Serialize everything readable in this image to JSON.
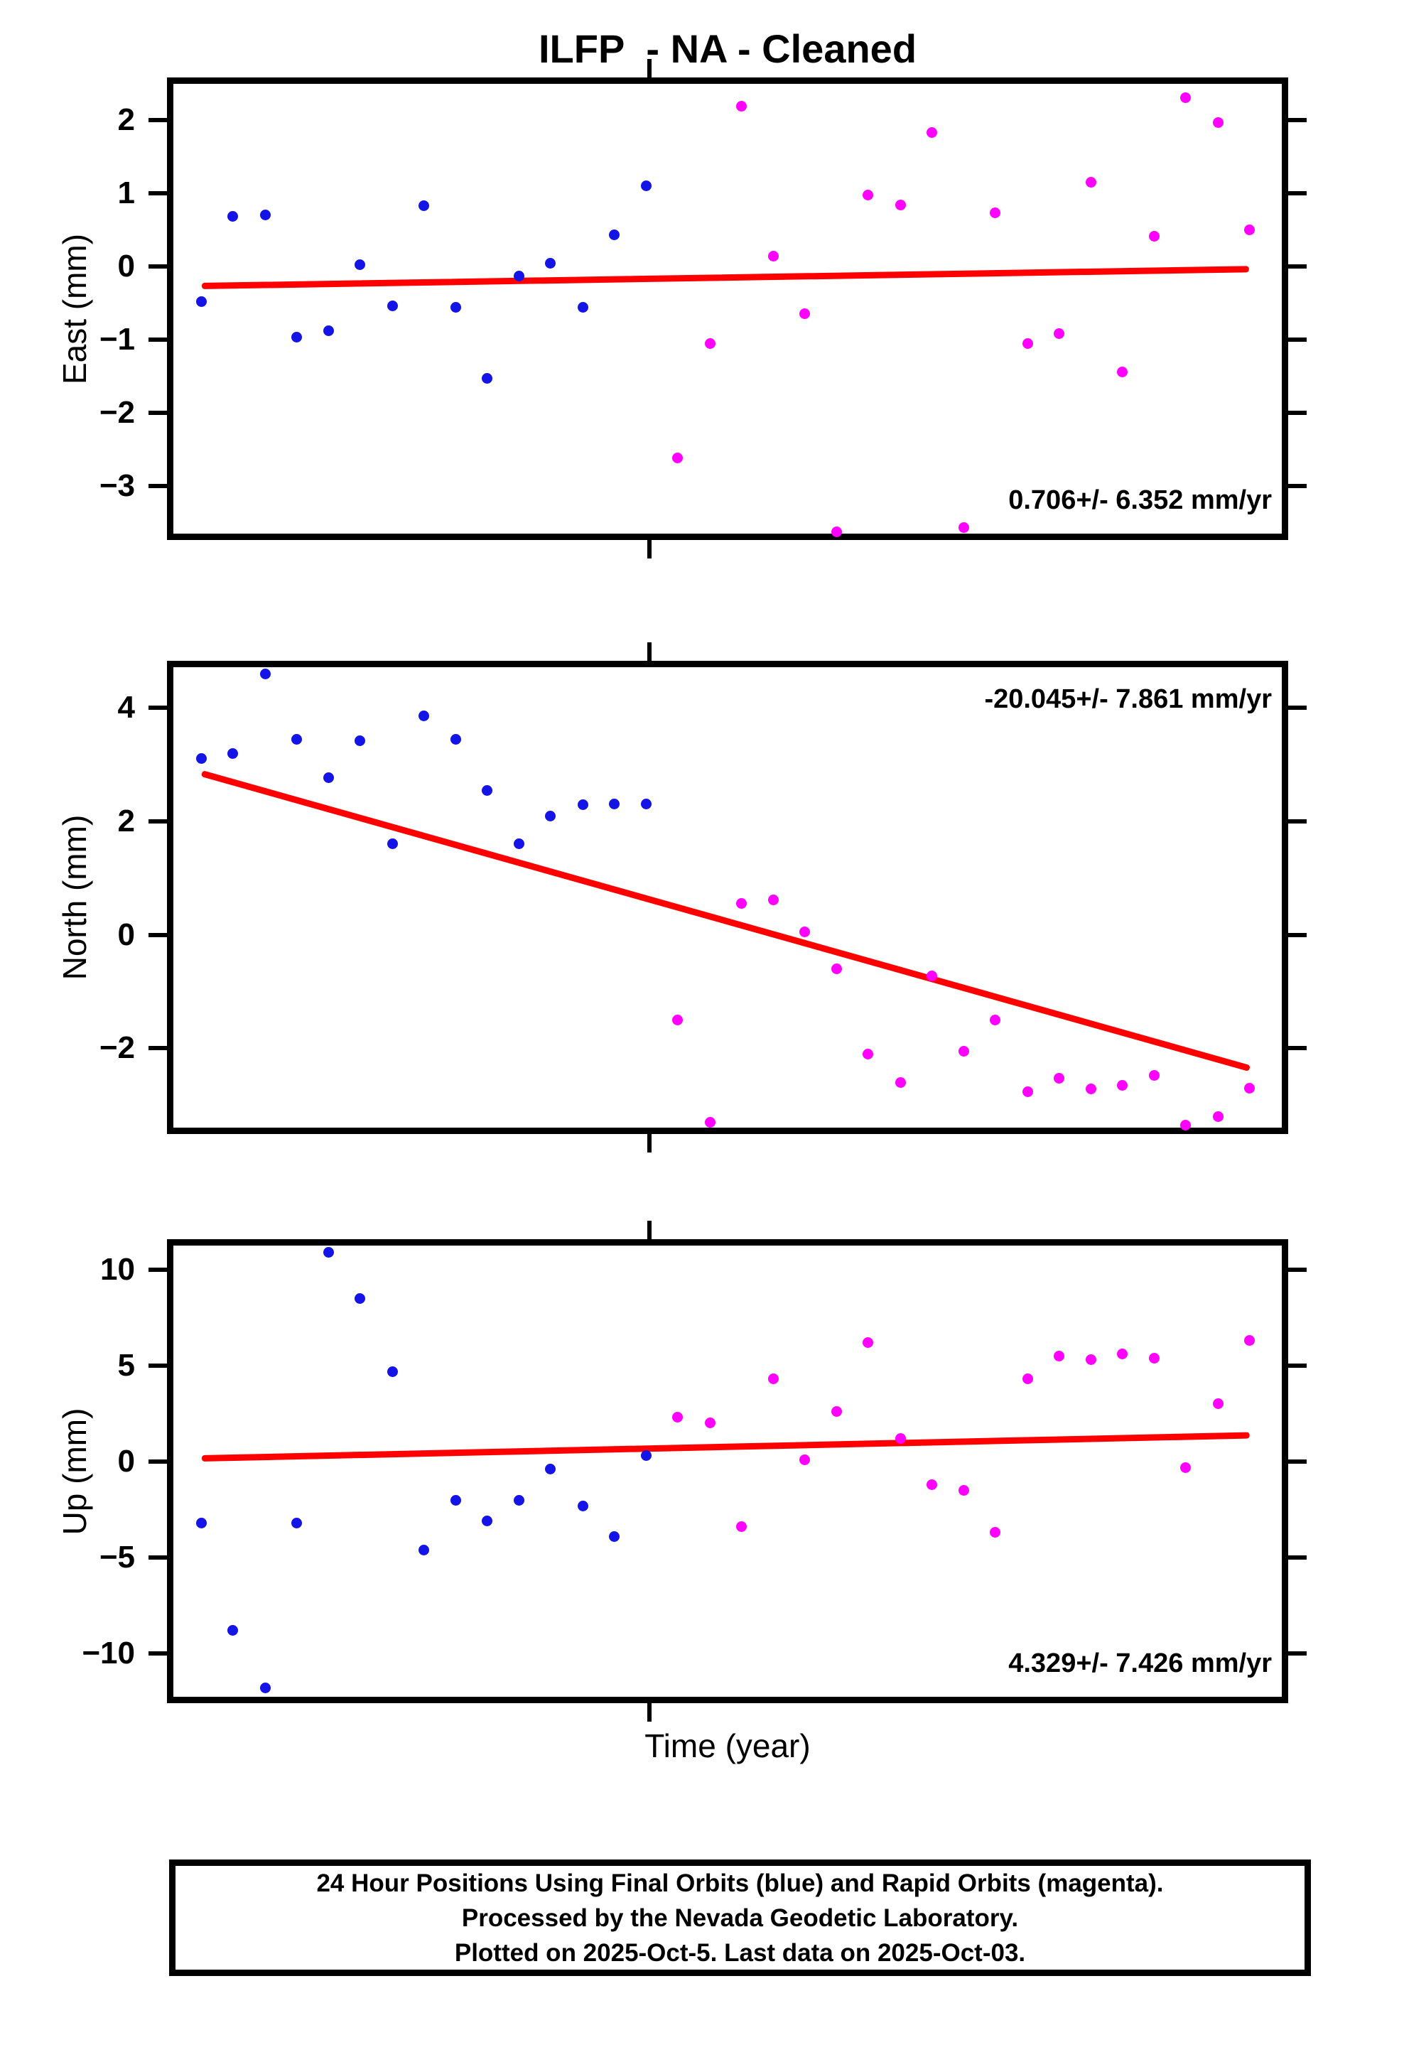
{
  "title": "ILFP  - NA - Cleaned",
  "xlabel": "Time (year)",
  "caption": {
    "line1": "24 Hour Positions Using Final Orbits (blue) and Rapid Orbits (magenta).",
    "line2": "Processed by the Nevada Geodetic Laboratory.",
    "line3": "Plotted on 2025-Oct-5. Last data on 2025-Oct-03."
  },
  "colors": {
    "final_orbits": "#1414E6",
    "rapid_orbits": "#FF00FF",
    "trend": "#FF0000",
    "frame": "#000000"
  },
  "legend_semantics": {
    "blue_series": "Final Orbits (blue)",
    "magenta_series": "Rapid Orbits (magenta)"
  },
  "chart_data": [
    {
      "type": "scatter",
      "id": "east",
      "ylabel": "East (mm)",
      "rate_text": "0.706+/- 6.352 mm/yr",
      "rate_text_corner": "bottom-right",
      "rate_mm_per_yr": 0.706,
      "rate_sigma": 6.352,
      "xlim": [
        2024.74,
        2025.81
      ],
      "xticks": [
        2025.2
      ],
      "ylim": [
        -3.69,
        2.53
      ],
      "yticks": [
        2,
        1,
        0,
        -1,
        -2,
        -3
      ],
      "grid": false,
      "series": [
        {
          "name": "Final Orbits",
          "color_key": "final_orbits",
          "x": [
            2024.77,
            2024.8,
            2024.831,
            2024.861,
            2024.892,
            2024.922,
            2024.953,
            2024.983,
            2025.014,
            2025.044,
            2025.075,
            2025.105,
            2025.136,
            2025.166,
            2025.197
          ],
          "y": [
            -0.48,
            0.68,
            0.7,
            -0.97,
            -0.88,
            0.02,
            -0.54,
            0.83,
            -0.56,
            -1.53,
            -0.13,
            0.04,
            -0.56,
            0.43,
            1.1
          ]
        },
        {
          "name": "Rapid Orbits",
          "color_key": "rapid_orbits",
          "x": [
            2025.227,
            2025.258,
            2025.288,
            2025.319,
            2025.349,
            2025.38,
            2025.41,
            2025.441,
            2025.471,
            2025.502,
            2025.532,
            2025.563,
            2025.593,
            2025.624,
            2025.654,
            2025.685,
            2025.715,
            2025.746,
            2025.776
          ],
          "y": [
            -2.62,
            -1.06,
            2.19,
            0.14,
            -0.65,
            -3.63,
            0.97,
            0.84,
            1.83,
            -3.57,
            0.73,
            -1.06,
            -0.92,
            1.15,
            -1.44,
            0.41,
            2.3,
            1.96,
            0.5
          ]
        }
      ],
      "trend": {
        "x": [
          2024.77,
          2025.776
        ],
        "y": [
          -0.27,
          -0.04
        ]
      }
    },
    {
      "type": "scatter",
      "id": "north",
      "ylabel": "North (mm)",
      "rate_text": "-20.045+/- 7.861 mm/yr",
      "rate_text_corner": "top-right",
      "rate_mm_per_yr": -20.045,
      "rate_sigma": 7.861,
      "xlim": [
        2024.74,
        2025.81
      ],
      "xticks": [
        2025.2
      ],
      "ylim": [
        -3.45,
        4.77
      ],
      "yticks": [
        4,
        2,
        0,
        -2
      ],
      "grid": false,
      "series": [
        {
          "name": "Final Orbits",
          "color_key": "final_orbits",
          "x": [
            2024.77,
            2024.8,
            2024.831,
            2024.861,
            2024.892,
            2024.922,
            2024.953,
            2024.983,
            2025.014,
            2025.044,
            2025.075,
            2025.105,
            2025.136,
            2025.166,
            2025.197
          ],
          "y": [
            3.11,
            3.2,
            4.6,
            3.45,
            2.77,
            3.42,
            1.61,
            3.86,
            3.45,
            2.55,
            1.61,
            2.1,
            2.29,
            2.31,
            2.31
          ]
        },
        {
          "name": "Rapid Orbits",
          "color_key": "rapid_orbits",
          "x": [
            2025.227,
            2025.258,
            2025.288,
            2025.319,
            2025.349,
            2025.38,
            2025.41,
            2025.441,
            2025.471,
            2025.502,
            2025.532,
            2025.563,
            2025.593,
            2025.624,
            2025.654,
            2025.685,
            2025.715,
            2025.746,
            2025.776
          ],
          "y": [
            -1.5,
            -3.3,
            0.55,
            0.62,
            0.05,
            -0.6,
            -2.1,
            -2.6,
            -0.72,
            -2.05,
            -1.5,
            -2.77,
            -2.53,
            -2.72,
            -2.65,
            -2.48,
            -3.35,
            -3.2,
            -2.7
          ]
        }
      ],
      "trend": {
        "x": [
          2024.77,
          2025.776
        ],
        "y": [
          2.85,
          -2.35
        ]
      }
    },
    {
      "type": "scatter",
      "id": "up",
      "ylabel": "Up (mm)",
      "rate_text": "4.329+/- 7.426 mm/yr",
      "rate_text_corner": "bottom-right",
      "rate_mm_per_yr": 4.329,
      "rate_sigma": 7.426,
      "xlim": [
        2024.74,
        2025.81
      ],
      "xticks": [
        2025.2
      ],
      "ylim": [
        -12.4,
        11.4
      ],
      "yticks": [
        10,
        5,
        0,
        -5,
        -10
      ],
      "grid": false,
      "series": [
        {
          "name": "Final Orbits",
          "color_key": "final_orbits",
          "x": [
            2024.77,
            2024.8,
            2024.831,
            2024.861,
            2024.892,
            2024.922,
            2024.953,
            2024.983,
            2025.014,
            2025.044,
            2025.075,
            2025.105,
            2025.136,
            2025.166,
            2025.197
          ],
          "y": [
            -3.2,
            -8.8,
            -11.8,
            -3.2,
            10.9,
            8.5,
            4.7,
            -4.6,
            -2.0,
            -3.1,
            -2.0,
            -0.4,
            -2.3,
            -3.9,
            0.3
          ]
        },
        {
          "name": "Rapid Orbits",
          "color_key": "rapid_orbits",
          "x": [
            2025.227,
            2025.258,
            2025.288,
            2025.319,
            2025.349,
            2025.38,
            2025.41,
            2025.441,
            2025.471,
            2025.502,
            2025.532,
            2025.563,
            2025.593,
            2025.624,
            2025.654,
            2025.685,
            2025.715,
            2025.746,
            2025.776
          ],
          "y": [
            2.3,
            2.0,
            -3.4,
            4.3,
            0.1,
            2.6,
            6.2,
            1.2,
            -1.2,
            -1.5,
            -3.7,
            4.3,
            5.5,
            5.3,
            5.6,
            5.4,
            -0.3,
            3.0,
            6.3
          ]
        }
      ],
      "trend": {
        "x": [
          2024.77,
          2025.776
        ],
        "y": [
          0.15,
          1.35
        ]
      }
    }
  ]
}
